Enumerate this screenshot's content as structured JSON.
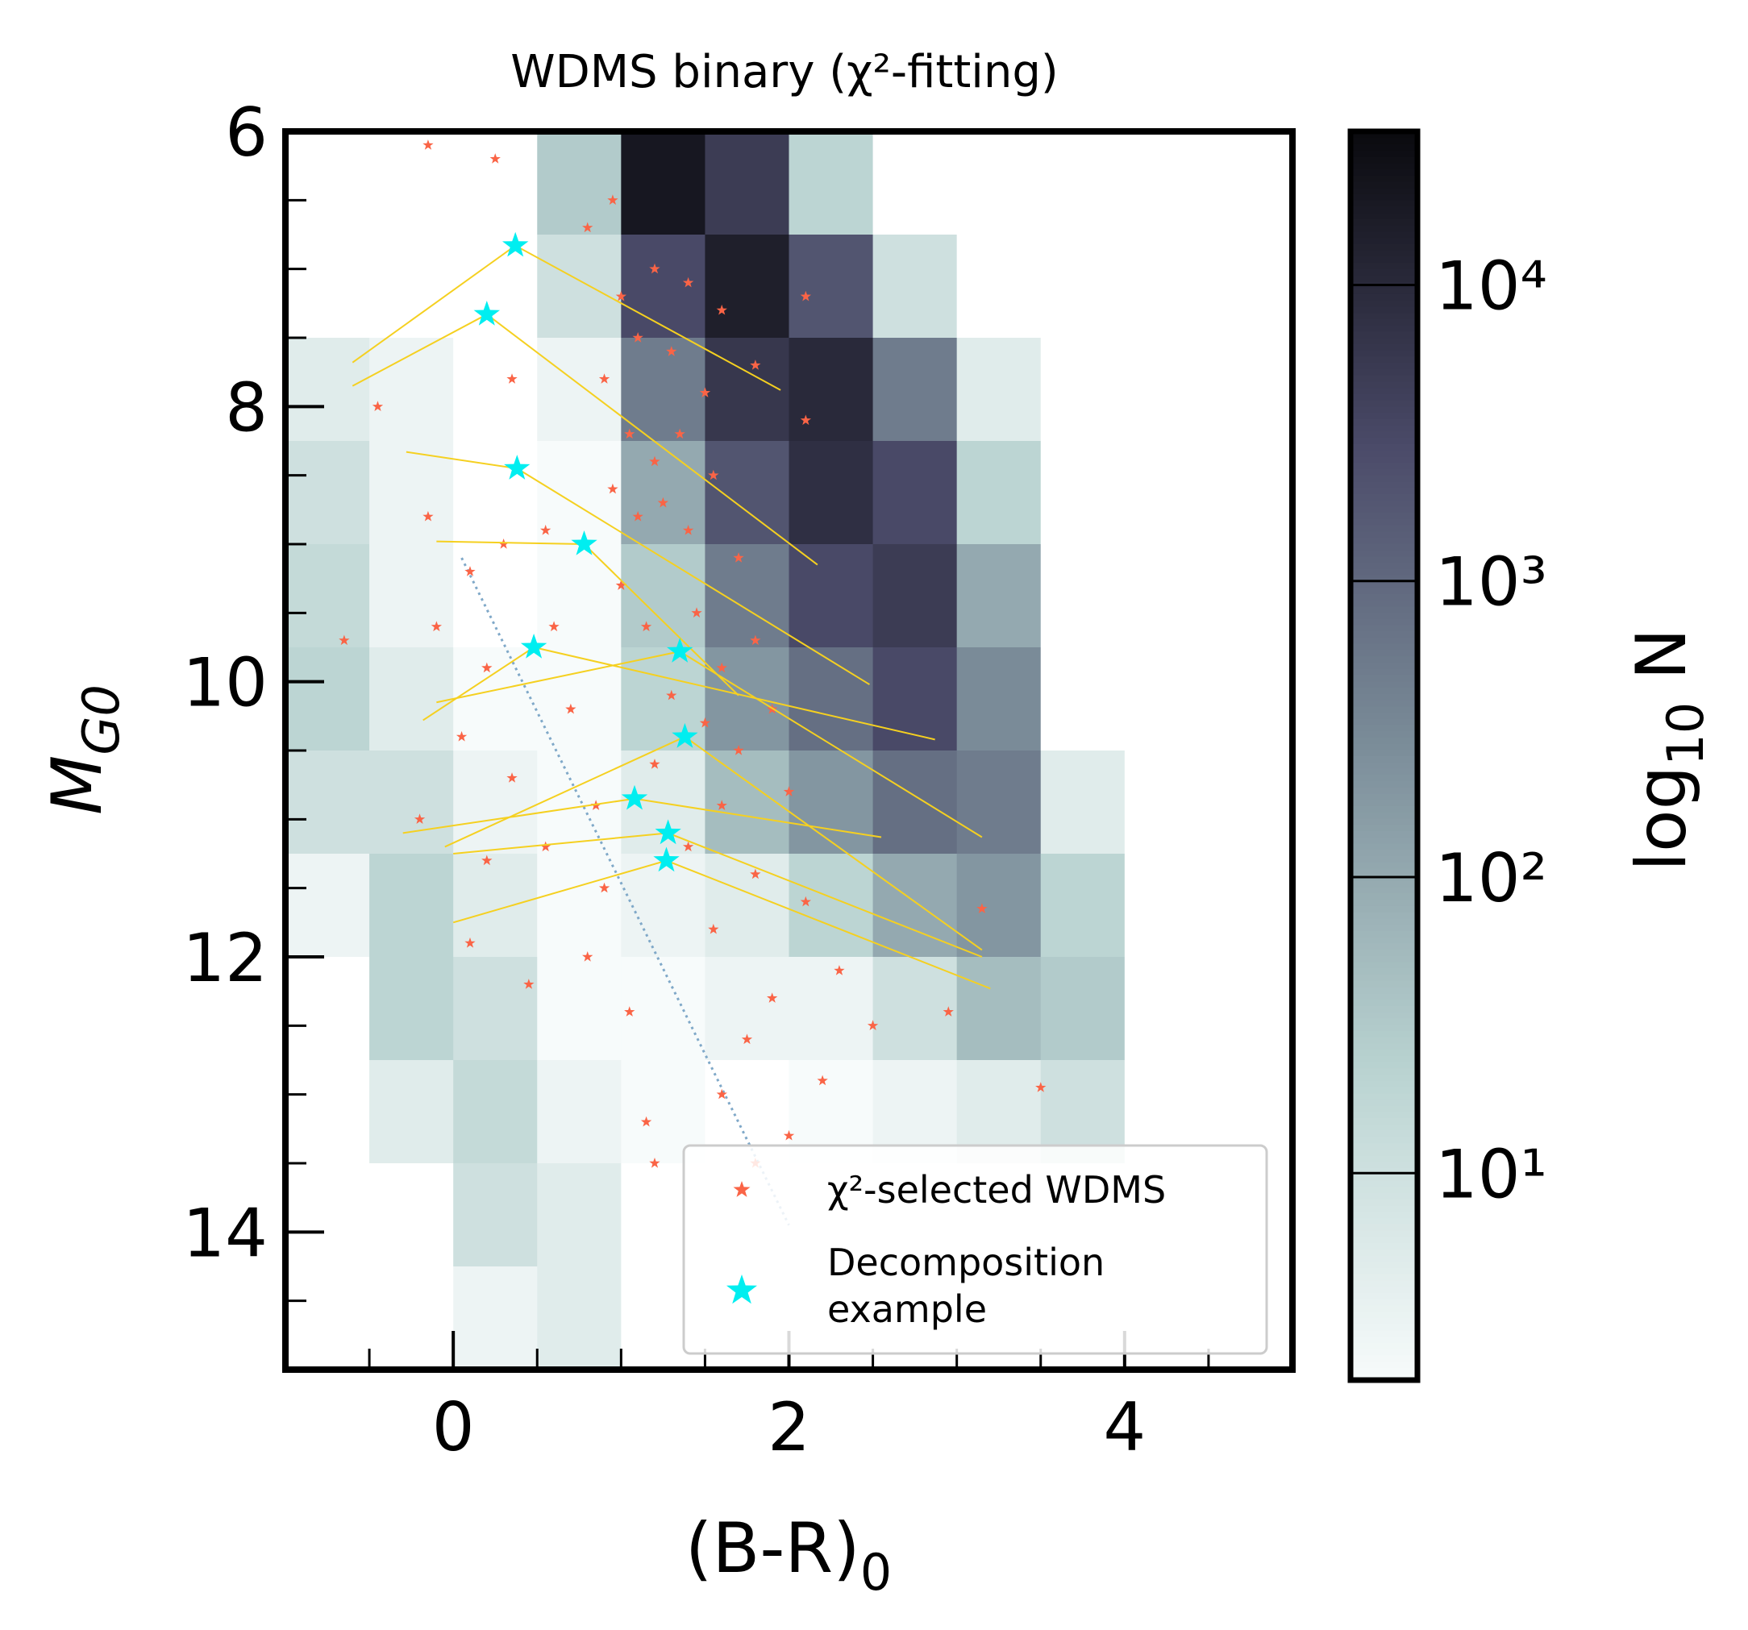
{
  "chart_data": {
    "type": "scatter",
    "title": "WDMS binary (χ²-fitting)",
    "x_label": {
      "main": "(B-R)",
      "sub": "0"
    },
    "y_label": {
      "main": "M",
      "sub": "G0"
    },
    "xlim": [
      -1,
      5
    ],
    "xticks": [
      0,
      2,
      4
    ],
    "xminor_ticks": [
      -0.5,
      0.5,
      1,
      1.5,
      2.5,
      3,
      3.5,
      4.5
    ],
    "ylim": [
      6,
      15
    ],
    "y_inverted": true,
    "yticks": [
      6,
      8,
      10,
      12,
      14
    ],
    "yminor_ticks": [
      6.5,
      7,
      7.5,
      8.5,
      9,
      9.5,
      10.5,
      11,
      11.5,
      12.5,
      13,
      13.5,
      14.5
    ],
    "density": {
      "x_edges": [
        -1,
        -0.5,
        0,
        0.5,
        1,
        1.5,
        2,
        2.5,
        3,
        3.5,
        4,
        4.5,
        5
      ],
      "y_edges": [
        6,
        6.75,
        7.5,
        8.25,
        9,
        9.75,
        10.5,
        11.25,
        12,
        12.75,
        13.5,
        14.25,
        15
      ],
      "counts": [
        [
          0,
          0,
          0,
          30,
          20000,
          5000,
          20,
          0,
          0,
          0,
          0,
          0
        ],
        [
          0,
          0,
          0,
          10,
          3000,
          15000,
          2000,
          10,
          0,
          0,
          0,
          0
        ],
        [
          5,
          3,
          0,
          3,
          500,
          6000,
          10000,
          500,
          5,
          0,
          0,
          0
        ],
        [
          10,
          3,
          0,
          2,
          100,
          2000,
          8000,
          3000,
          20,
          0,
          0,
          0
        ],
        [
          15,
          3,
          0,
          2,
          30,
          500,
          3000,
          5000,
          100,
          0,
          0,
          0
        ],
        [
          20,
          5,
          2,
          2,
          20,
          200,
          800,
          3000,
          300,
          0,
          0,
          0
        ],
        [
          10,
          10,
          3,
          2,
          5,
          50,
          200,
          800,
          500,
          5,
          0,
          0
        ],
        [
          3,
          20,
          5,
          2,
          3,
          5,
          20,
          100,
          200,
          20,
          0,
          0
        ],
        [
          0,
          20,
          10,
          2,
          2,
          3,
          3,
          10,
          50,
          30,
          0,
          0
        ],
        [
          0,
          5,
          15,
          3,
          2,
          0,
          2,
          3,
          5,
          10,
          0,
          0
        ],
        [
          0,
          0,
          10,
          5,
          0,
          0,
          0,
          0,
          0,
          0,
          0,
          0
        ],
        [
          0,
          0,
          3,
          5,
          0,
          0,
          0,
          0,
          0,
          0,
          0,
          0
        ]
      ]
    },
    "colorbar": {
      "label": {
        "main": "log",
        "sub": "10",
        "rest": " N"
      },
      "clim": [
        2,
        33000
      ],
      "log_scale": true,
      "ticks": [
        {
          "value": 10,
          "label": "10¹"
        },
        {
          "value": 100,
          "label": "10²"
        },
        {
          "value": 1000,
          "label": "10³"
        },
        {
          "value": 10000,
          "label": "10⁴"
        }
      ],
      "colormap": [
        "#f7fbfb",
        "#b9d3d1",
        "#7d8f9b",
        "#4a4a68",
        "#0a0a0e"
      ]
    },
    "series": [
      {
        "name": "χ²-selected WDMS",
        "color": "#fa6446",
        "x": [
          1.0,
          1.1,
          1.2,
          0.9,
          1.3,
          1.5,
          1.05,
          1.2,
          1.35,
          0.95,
          1.1,
          1.25,
          1.4,
          1.55,
          1.7,
          1.0,
          1.15,
          1.45,
          1.6,
          1.8,
          1.3,
          1.5,
          1.7,
          1.9,
          1.2,
          1.6,
          2.0,
          1.4,
          1.8,
          2.1,
          1.55,
          2.3,
          1.9,
          2.5,
          1.75,
          2.2,
          1.6,
          2.0,
          0.8,
          0.95,
          1.4,
          1.6,
          2.1,
          1.8,
          2.1,
          -0.15,
          0.1,
          0.3,
          0.55,
          -0.1,
          0.2,
          0.6,
          0.05,
          0.35,
          0.7,
          0.85,
          -0.2,
          0.2,
          0.55,
          0.9,
          0.1,
          0.45,
          0.8,
          1.05,
          0.35,
          -0.45,
          -0.65,
          -0.15,
          0.25,
          1.15,
          1.8,
          3.5,
          2.95,
          3.15,
          1.2
        ],
        "y": [
          7.2,
          7.5,
          7.0,
          7.8,
          7.6,
          7.9,
          8.2,
          8.4,
          8.2,
          8.6,
          8.8,
          8.7,
          8.9,
          8.5,
          9.1,
          9.3,
          9.6,
          9.5,
          9.9,
          9.7,
          10.1,
          10.3,
          10.5,
          10.2,
          10.6,
          10.9,
          10.8,
          11.2,
          11.4,
          11.6,
          11.8,
          12.1,
          12.3,
          12.5,
          12.6,
          12.9,
          13.0,
          13.3,
          6.7,
          6.5,
          7.1,
          7.3,
          7.2,
          7.7,
          8.1,
          8.8,
          9.2,
          9.0,
          8.9,
          9.6,
          9.9,
          9.6,
          10.4,
          10.7,
          10.2,
          10.9,
          11.0,
          11.3,
          11.2,
          11.5,
          11.9,
          12.2,
          12.0,
          12.4,
          7.8,
          8.0,
          9.7,
          6.1,
          6.2,
          13.2,
          13.5,
          12.95,
          12.4,
          11.65,
          13.5
        ]
      },
      {
        "name": "Decomposition\nexample",
        "color": "#00eef0",
        "x": [
          0.37,
          0.2,
          0.38,
          0.78,
          0.48,
          1.35,
          1.38,
          1.08,
          1.28,
          1.27
        ],
        "y": [
          6.83,
          7.33,
          8.45,
          9.0,
          9.75,
          9.78,
          10.4,
          10.85,
          11.1,
          11.3
        ]
      }
    ],
    "decomposition_lines": {
      "color": "#f5d020",
      "lines": [
        {
          "x": [
            -0.6,
            0.37,
            1.95
          ],
          "y": [
            7.68,
            6.83,
            7.88
          ]
        },
        {
          "x": [
            -0.6,
            0.2,
            2.17
          ],
          "y": [
            7.85,
            7.33,
            9.15
          ]
        },
        {
          "x": [
            -0.28,
            0.38,
            2.48
          ],
          "y": [
            8.33,
            8.45,
            10.02
          ]
        },
        {
          "x": [
            -0.1,
            0.78,
            1.7
          ],
          "y": [
            8.98,
            9.0,
            10.1
          ]
        },
        {
          "x": [
            -0.18,
            0.48,
            2.87
          ],
          "y": [
            10.28,
            9.75,
            10.42
          ]
        },
        {
          "x": [
            -0.1,
            1.35,
            3.15
          ],
          "y": [
            10.15,
            9.78,
            11.13
          ]
        },
        {
          "x": [
            -0.05,
            1.38,
            3.15
          ],
          "y": [
            11.2,
            10.4,
            11.95
          ]
        },
        {
          "x": [
            -0.3,
            1.08,
            2.55
          ],
          "y": [
            11.1,
            10.85,
            11.13
          ]
        },
        {
          "x": [
            0,
            1.28,
            3.15
          ],
          "y": [
            11.25,
            11.1,
            12.0
          ]
        },
        {
          "x": [
            0,
            1.27,
            3.2
          ],
          "y": [
            11.75,
            11.3,
            12.23
          ]
        }
      ]
    },
    "dotted_line": {
      "color": "#7fa8c8",
      "x": [
        0.05,
        2.0
      ],
      "y": [
        9.1,
        13.95
      ]
    },
    "legend": "lower right"
  }
}
